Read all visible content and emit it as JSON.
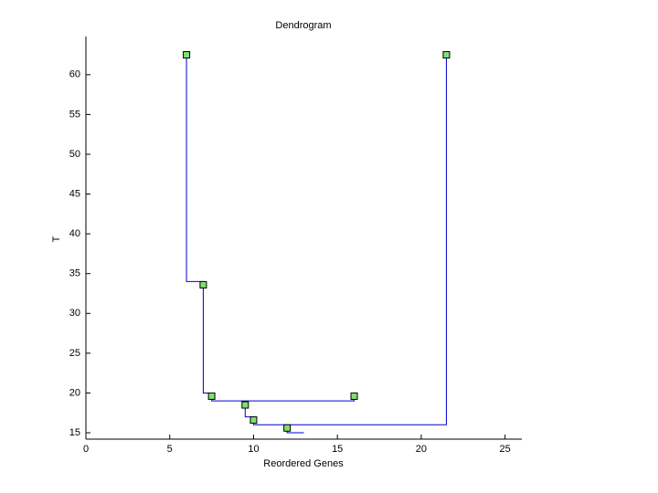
{
  "chart_data": {
    "type": "dendrogram",
    "title": "Dendrogram",
    "x_label": "Reordered Genes",
    "y_label": "T",
    "xlim": [
      0,
      26
    ],
    "xticks": [
      0,
      5,
      10,
      15,
      20,
      25
    ],
    "ylim": [
      14.2,
      64.8
    ],
    "yticks": [
      15,
      20,
      25,
      30,
      35,
      40,
      45,
      50,
      55,
      60
    ],
    "lines": {
      "color": "#0000cc",
      "x": [
        6,
        6,
        7,
        7,
        7.5,
        7.5,
        16,
        16,
        null,
        9.5,
        9.5,
        10,
        10,
        21.5,
        21.5,
        null,
        12,
        12,
        13
      ],
      "y": [
        62.5,
        34,
        34,
        20,
        20,
        19,
        19,
        19.6,
        null,
        19,
        17,
        17,
        16,
        16,
        62.5,
        null,
        16,
        15,
        15
      ]
    },
    "markers": {
      "color": "#80e070",
      "x": [
        6,
        21.5,
        7,
        7.5,
        16,
        9.5,
        10,
        12
      ],
      "y": [
        62.5,
        62.5,
        33.6,
        19.6,
        19.6,
        18.5,
        16.6,
        15.6
      ]
    }
  }
}
